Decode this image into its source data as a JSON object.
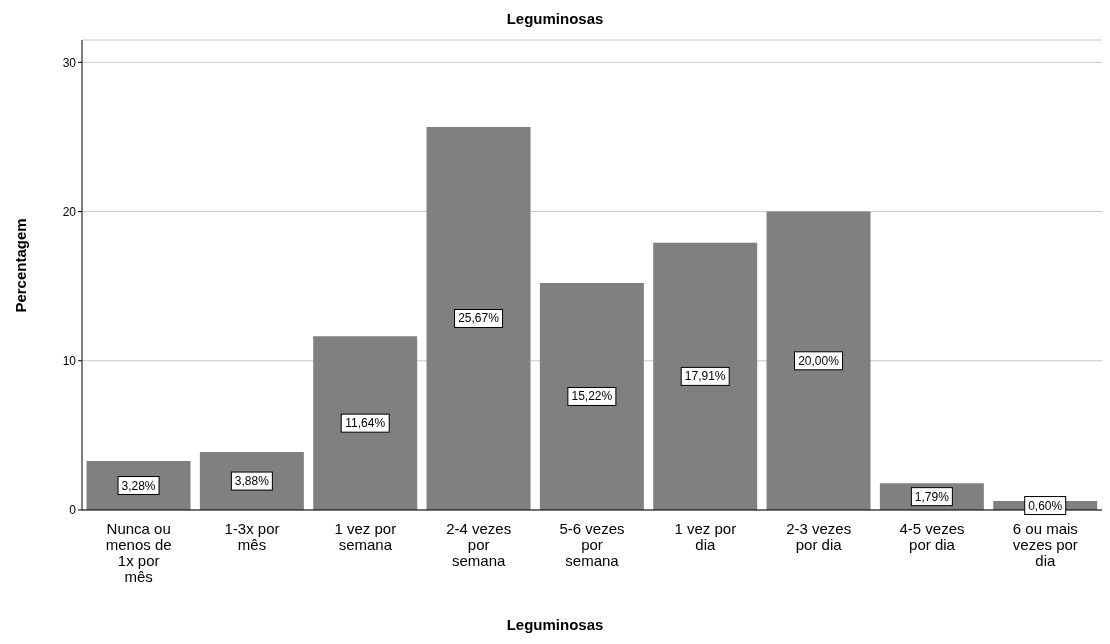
{
  "chart_data": {
    "type": "bar",
    "title": "Leguminosas",
    "xlabel": "Leguminosas",
    "ylabel": "Percentagem",
    "categories": [
      "Nunca ou menos de 1x por mês",
      "1-3x por mês",
      "1 vez por semana",
      "2-4 vezes por semana",
      "5-6 vezes por semana",
      "1 vez por dia",
      "2-3 vezes por dia",
      "4-5 vezes por dia",
      "6 ou mais vezes por dia"
    ],
    "values": [
      3.28,
      3.88,
      11.64,
      25.67,
      15.22,
      17.91,
      20.0,
      1.79,
      0.6
    ],
    "value_labels": [
      "3,28%",
      "3,88%",
      "11,64%",
      "25,67%",
      "15,22%",
      "17,91%",
      "20,00%",
      "1,79%",
      "0,60%"
    ],
    "color": "#808080",
    "ylim": [
      0,
      31.5
    ],
    "yticks": [
      0,
      10,
      20,
      30
    ],
    "grid": "y",
    "legend": false
  }
}
